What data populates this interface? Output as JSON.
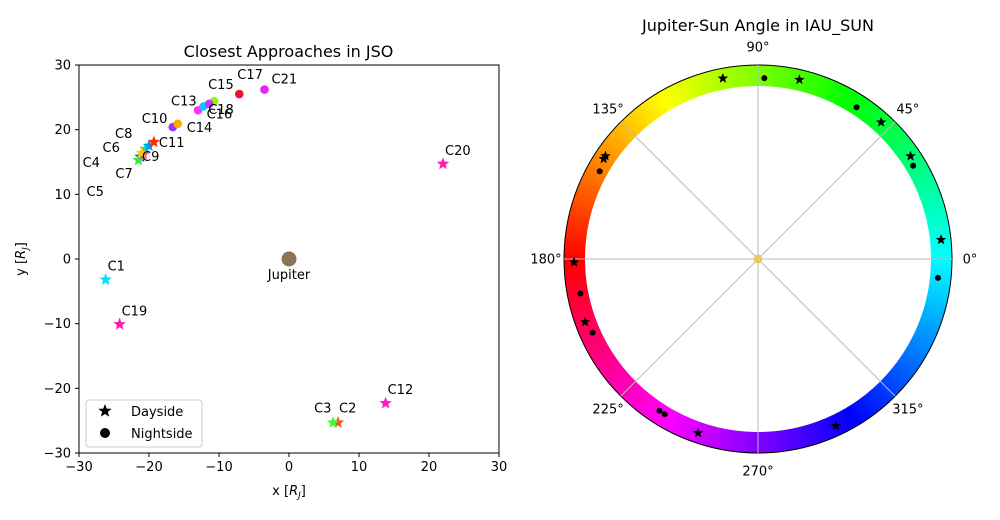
{
  "chart_data": [
    {
      "type": "scatter",
      "title": "Closest Approaches in JSO",
      "xlabel": "x [R_J]",
      "ylabel": "y [R_J]",
      "xlim": [
        -30,
        30
      ],
      "ylim": [
        -30,
        30
      ],
      "xticks": [
        "−30",
        "−20",
        "−10",
        "0",
        "10",
        "20",
        "30"
      ],
      "yticks": [
        "−30",
        "−20",
        "−10",
        "0",
        "10",
        "20",
        "30"
      ],
      "legend": {
        "placement": "lower-left",
        "entries": [
          {
            "label": "Dayside",
            "marker": "star"
          },
          {
            "label": "Nightside",
            "marker": "circle"
          }
        ]
      },
      "jupiter": {
        "label": "Jupiter",
        "x": 0,
        "y": 0,
        "color": "#8B7355"
      },
      "points": [
        {
          "name": "C1",
          "x": -26.2,
          "y": -3.2,
          "marker": "star",
          "color": "#00e5f0"
        },
        {
          "name": "C2",
          "x": 7.0,
          "y": -25.3,
          "marker": "star",
          "color": "#ff4d1a"
        },
        {
          "name": "C3",
          "x": 6.3,
          "y": -25.3,
          "marker": "star",
          "color": "#33ff33"
        },
        {
          "name": "C4",
          "x": -21.2,
          "y": 15.8,
          "marker": "star",
          "color": "#1a33ff"
        },
        {
          "name": "C5",
          "x": -21.5,
          "y": 15.3,
          "marker": "star",
          "color": "#33ee33"
        },
        {
          "name": "C6",
          "x": -20.5,
          "y": 17.0,
          "marker": "star",
          "color": "#00ee88"
        },
        {
          "name": "C7",
          "x": -20.8,
          "y": 16.2,
          "marker": "star",
          "color": "#ff33cc"
        },
        {
          "name": "C8",
          "x": -20.0,
          "y": 17.5,
          "marker": "star",
          "color": "#0099ff"
        },
        {
          "name": "C9",
          "x": -21.0,
          "y": 16.4,
          "marker": "star",
          "color": "#ffcc00"
        },
        {
          "name": "C10",
          "x": -16.6,
          "y": 20.4,
          "marker": "circle",
          "color": "#9933ff"
        },
        {
          "name": "C11",
          "x": -19.3,
          "y": 18.1,
          "marker": "star",
          "color": "#ff2a00"
        },
        {
          "name": "C12",
          "x": 13.8,
          "y": -22.3,
          "marker": "star",
          "color": "#ff1ac6"
        },
        {
          "name": "C13",
          "x": -13.0,
          "y": 23.0,
          "marker": "circle",
          "color": "#ff33ff"
        },
        {
          "name": "C14",
          "x": -15.9,
          "y": 20.9,
          "marker": "circle",
          "color": "#ffaa00"
        },
        {
          "name": "C15",
          "x": -10.7,
          "y": 24.4,
          "marker": "circle",
          "color": "#88ff00"
        },
        {
          "name": "C16",
          "x": -12.2,
          "y": 23.6,
          "marker": "circle",
          "color": "#00ccff"
        },
        {
          "name": "C17",
          "x": -7.1,
          "y": 25.5,
          "marker": "circle",
          "color": "#ee1133"
        },
        {
          "name": "C18",
          "x": -11.4,
          "y": 24.0,
          "marker": "circle",
          "color": "#cc33ff"
        },
        {
          "name": "C19",
          "x": -24.2,
          "y": -10.1,
          "marker": "star",
          "color": "#ff1ab0"
        },
        {
          "name": "C20",
          "x": 22.0,
          "y": 14.7,
          "marker": "star",
          "color": "#ff1ab0"
        },
        {
          "name": "C21",
          "x": -3.5,
          "y": 26.2,
          "marker": "circle",
          "color": "#ee22ee"
        }
      ]
    },
    {
      "type": "polar-scatter",
      "title": "Jupiter-Sun Angle in IAU_SUN",
      "angle_labels": [
        {
          "angle": 0,
          "label": "0°"
        },
        {
          "angle": 45,
          "label": "45°"
        },
        {
          "angle": 90,
          "label": "90°"
        },
        {
          "angle": 135,
          "label": "135°"
        },
        {
          "angle": 180,
          "label": "180°"
        },
        {
          "angle": 225,
          "label": "225°"
        },
        {
          "angle": 270,
          "label": "270°"
        },
        {
          "angle": 315,
          "label": "315°"
        }
      ],
      "colorwheel": "hue-by-angle",
      "center_color": "#e8c860",
      "points": [
        {
          "angle": 101,
          "marker": "star"
        },
        {
          "angle": 77,
          "marker": "star"
        },
        {
          "angle": 48,
          "marker": "star"
        },
        {
          "angle": 34,
          "marker": "star"
        },
        {
          "angle": 6,
          "marker": "star"
        },
        {
          "angle": 147,
          "marker": "star"
        },
        {
          "angle": 146,
          "marker": "star"
        },
        {
          "angle": 181,
          "marker": "star"
        },
        {
          "angle": 200,
          "marker": "star"
        },
        {
          "angle": 251,
          "marker": "star"
        },
        {
          "angle": 295,
          "marker": "star"
        },
        {
          "angle": 88,
          "marker": "circle"
        },
        {
          "angle": 57,
          "marker": "circle"
        },
        {
          "angle": 31,
          "marker": "circle"
        },
        {
          "angle": 354,
          "marker": "circle"
        },
        {
          "angle": 151,
          "marker": "circle"
        },
        {
          "angle": 191,
          "marker": "circle"
        },
        {
          "angle": 204,
          "marker": "circle"
        },
        {
          "angle": 237,
          "marker": "circle"
        },
        {
          "angle": 239,
          "marker": "circle"
        }
      ]
    }
  ]
}
